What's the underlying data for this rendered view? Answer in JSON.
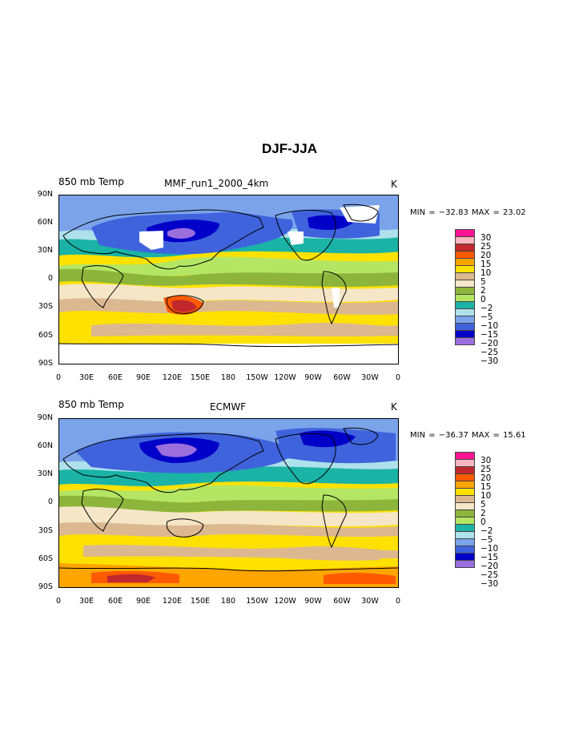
{
  "figure": {
    "title": "DJF-JJA"
  },
  "colors": {
    "levels": [
      "#ff1493",
      "#ffb6c1",
      "#c0282d",
      "#ff5a00",
      "#ffa500",
      "#ffe100",
      "#dcb890",
      "#f5e6c8",
      "#8db53c",
      "#b4e664",
      "#1ab3a6",
      "#aee1eb",
      "#7ba3ea",
      "#3f63dd",
      "#0000c8",
      "#9b6ede"
    ],
    "land_outline": "#000000"
  },
  "axes": {
    "y_ticks": [
      "90N",
      "60N",
      "30N",
      "0",
      "30S",
      "60S",
      "90S"
    ],
    "x_ticks": [
      "0",
      "30E",
      "60E",
      "90E",
      "120E",
      "150E",
      "180",
      "150W",
      "120W",
      "90W",
      "60W",
      "30W",
      "0"
    ]
  },
  "legend_labels": [
    "30",
    "25",
    "20",
    "15",
    "10",
    "5",
    "2",
    "0",
    "−2",
    "−5",
    "−10",
    "−15",
    "−20",
    "−25",
    "−30"
  ],
  "panels": [
    {
      "left_title": "850 mb Temp",
      "center_title": "MMF_run1_2000_4km",
      "right_title": "K",
      "min_max": "MIN = −32.83 MAX =  23.02"
    },
    {
      "left_title": "850 mb Temp",
      "center_title": "ECMWF",
      "right_title": "K",
      "min_max": "MIN = −36.37 MAX =  15.61"
    }
  ]
}
